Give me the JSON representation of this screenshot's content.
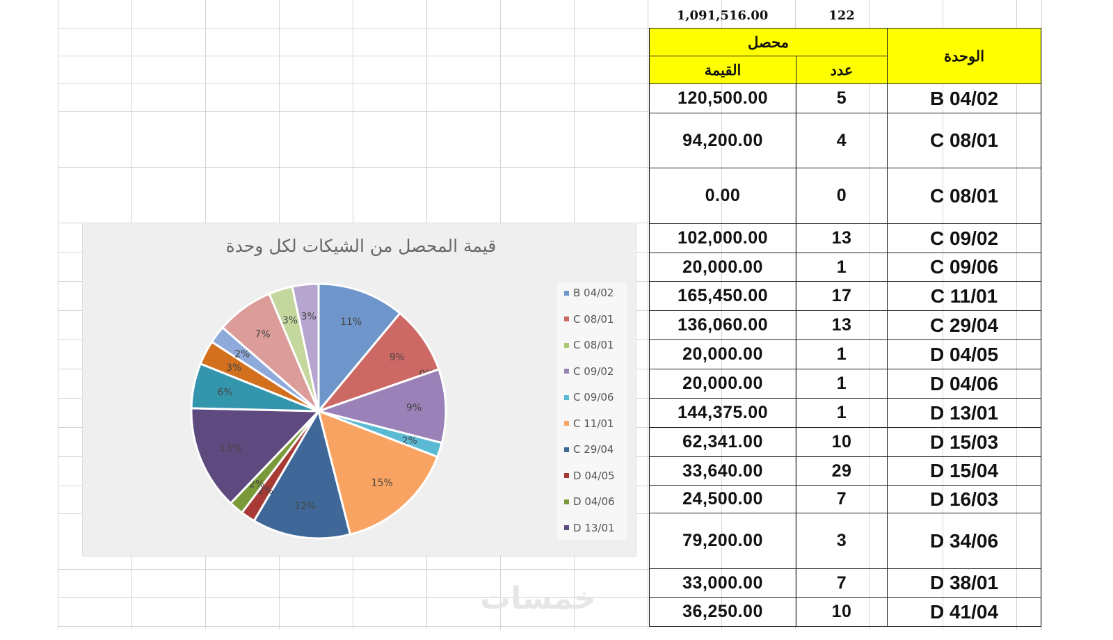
{
  "totals": {
    "value": "1,091,516.00",
    "count": "122"
  },
  "header": {
    "collected": "محصل",
    "value": "القيمة",
    "count": "عدد",
    "unit": "الوحدة"
  },
  "rows": [
    {
      "value": "120,500.00",
      "count": "5",
      "unit": "B 04/02"
    },
    {
      "value": "94,200.00",
      "count": "4",
      "unit": "C 08/01"
    },
    {
      "value": "0.00",
      "count": "0",
      "unit": "C 08/01"
    },
    {
      "value": "102,000.00",
      "count": "13",
      "unit": "C 09/02"
    },
    {
      "value": "20,000.00",
      "count": "1",
      "unit": "C 09/06"
    },
    {
      "value": "165,450.00",
      "count": "17",
      "unit": "C 11/01"
    },
    {
      "value": "136,060.00",
      "count": "13",
      "unit": "C 29/04"
    },
    {
      "value": "20,000.00",
      "count": "1",
      "unit": "D 04/05"
    },
    {
      "value": "20,000.00",
      "count": "1",
      "unit": "D 04/06"
    },
    {
      "value": "144,375.00",
      "count": "1",
      "unit": "D 13/01"
    },
    {
      "value": "62,341.00",
      "count": "10",
      "unit": "D 15/03"
    },
    {
      "value": "33,640.00",
      "count": "29",
      "unit": "D 15/04"
    },
    {
      "value": "24,500.00",
      "count": "7",
      "unit": "D 16/03"
    },
    {
      "value": "79,200.00",
      "count": "3",
      "unit": "D 34/06"
    },
    {
      "value": "33,000.00",
      "count": "7",
      "unit": "D 38/01"
    },
    {
      "value": "36,250.00",
      "count": "10",
      "unit": "D 41/04"
    }
  ],
  "header_color": "#ffff00",
  "chart_data": {
    "type": "pie",
    "title": "قيمة المحصل من الشيكات لكل وحدة",
    "categories": [
      "B 04/02",
      "C 08/01",
      "C 08/01",
      "C 09/02",
      "C 09/06",
      "C 11/01",
      "C 29/04",
      "D 04/05",
      "D 04/06",
      "D 13/01",
      "D 15/03",
      "D 15/04",
      "D 16/03",
      "D 34/06",
      "D 38/01",
      "D 41/04"
    ],
    "values": [
      120500,
      94200,
      0,
      102000,
      20000,
      165450,
      136060,
      20000,
      20000,
      144375,
      62341,
      33640,
      24500,
      79200,
      33000,
      36250
    ],
    "labels": [
      "11%",
      "9%",
      "0%",
      "9%",
      "2%",
      "15%",
      "12%",
      "2%",
      "2%",
      "13%",
      "6%",
      "3%",
      "2%",
      "7%",
      "3%",
      "3%"
    ],
    "colors": [
      "#6f96cb",
      "#cd6965",
      "#adc872",
      "#9a82b8",
      "#5bbad3",
      "#f9a362",
      "#3f6899",
      "#a83a36",
      "#7a9a3a",
      "#5f4a80",
      "#3496ad",
      "#d2701e",
      "#8eaadb",
      "#dc9c9a",
      "#c4d89e",
      "#b5a5cf"
    ],
    "legend": [
      "B 04/02",
      "C 08/01",
      "C 08/01",
      "C 09/02",
      "C 09/06",
      "C 11/01",
      "C 29/04",
      "D 04/05",
      "D 04/06",
      "D 13/01"
    ],
    "legend_position": "right"
  },
  "watermark": "خمسات"
}
